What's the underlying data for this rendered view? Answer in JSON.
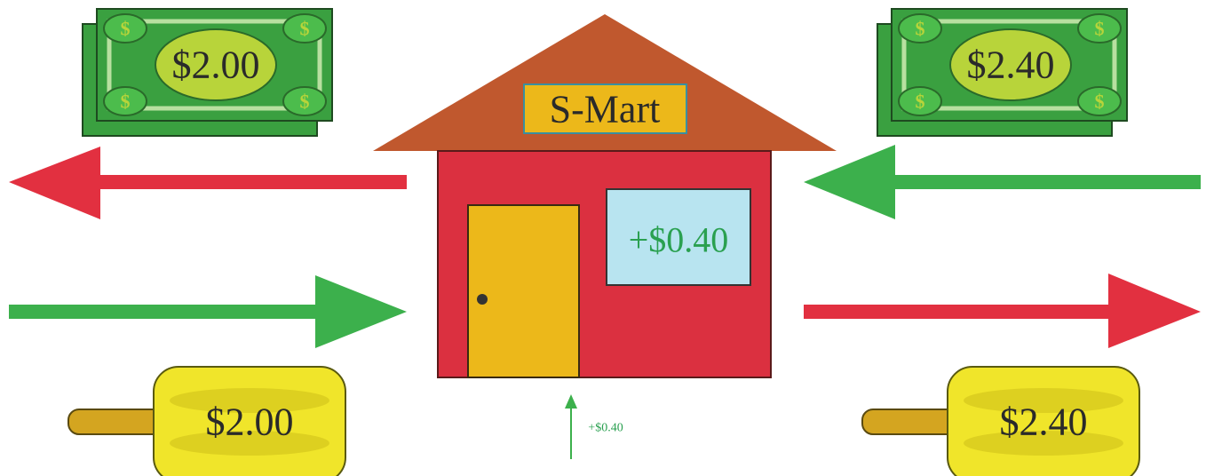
{
  "left_bill": {
    "label": "$2.00"
  },
  "right_bill": {
    "label": "$2.40"
  },
  "store": {
    "name": "S-Mart",
    "window_label": "+$0.40"
  },
  "markup_arrow": {
    "label": "+$0.40"
  },
  "left_popsicle": {
    "label": "$2.00"
  },
  "right_popsicle": {
    "label": "$2.40"
  }
}
